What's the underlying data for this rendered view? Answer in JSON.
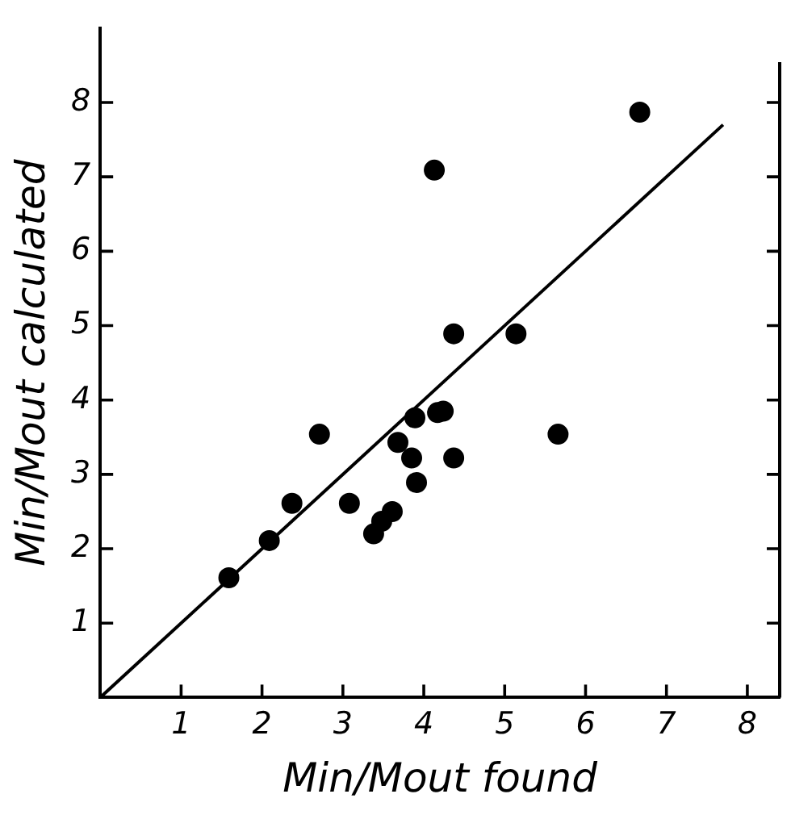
{
  "chart_data": {
    "type": "scatter",
    "xlabel": "Min/Mout found",
    "ylabel": "Min/Mout calculated",
    "xlim": [
      0,
      8.4
    ],
    "ylim": [
      0,
      9
    ],
    "xticks": [
      1,
      2,
      3,
      4,
      5,
      6,
      7,
      8
    ],
    "yticks": [
      1,
      2,
      3,
      4,
      5,
      6,
      7,
      8
    ],
    "grid": false,
    "marker": "circle",
    "series": [
      {
        "color": "#000000",
        "x": [
          6.67,
          4.13,
          4.37,
          5.14,
          1.59,
          2.09,
          2.37,
          2.71,
          3.08,
          3.38,
          3.48,
          3.61,
          3.68,
          3.85,
          3.91,
          3.89,
          4.17,
          4.24,
          4.37,
          5.66
        ],
        "values": [
          7.87,
          7.09,
          4.89,
          4.89,
          1.61,
          2.11,
          2.61,
          3.54,
          2.61,
          2.2,
          2.37,
          2.5,
          3.43,
          3.22,
          2.89,
          3.76,
          3.83,
          3.85,
          3.22,
          3.54
        ]
      },
      {
        "type": "line",
        "color": "#000000",
        "x": [
          0,
          7.7
        ],
        "values": [
          0,
          7.7
        ],
        "marker": "none",
        "line_style": "solid"
      }
    ]
  }
}
